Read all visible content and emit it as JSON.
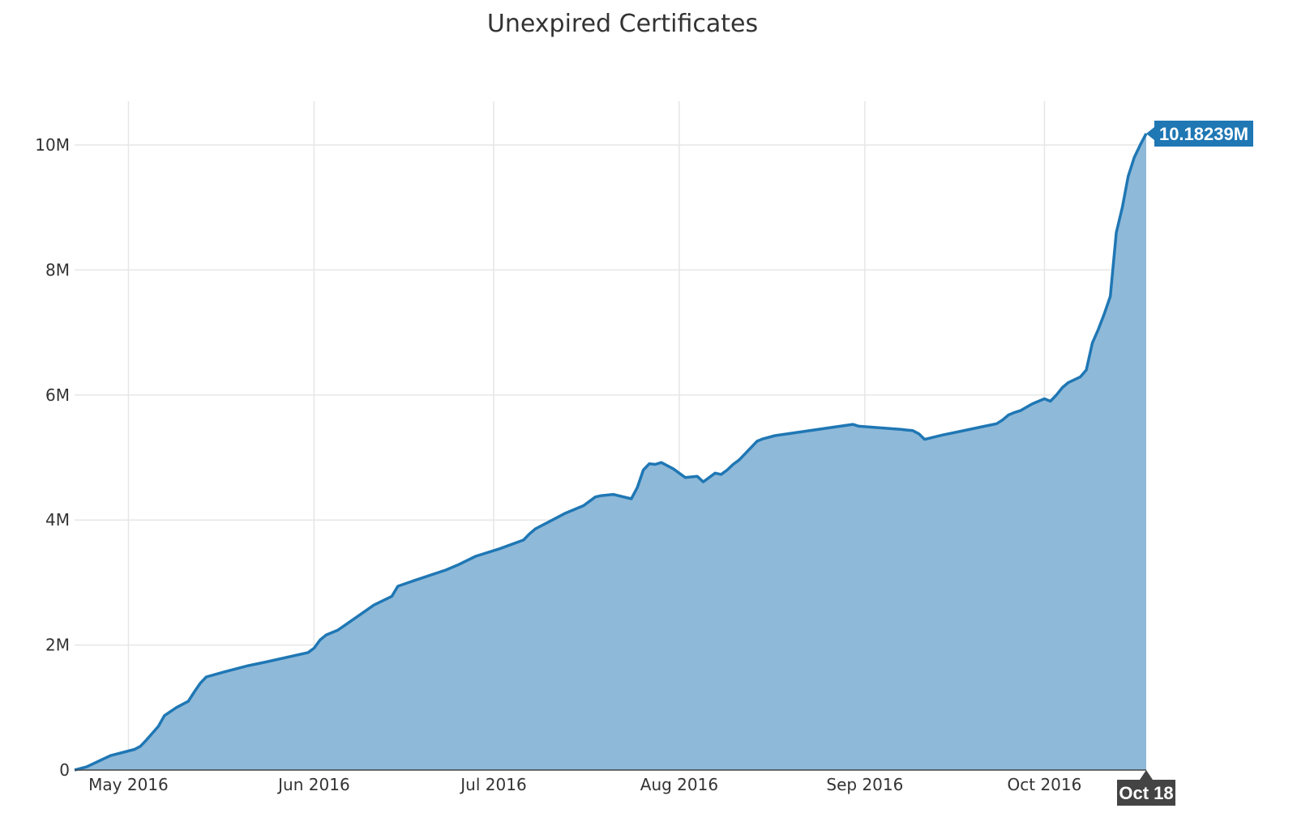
{
  "chart_data": {
    "type": "area",
    "title": "Unexpired Certificates",
    "xlabel": "",
    "ylabel": "",
    "x_ticks": [
      "May 2016",
      "Jun 2016",
      "Jul 2016",
      "Aug 2016",
      "Sep 2016",
      "Oct 2016"
    ],
    "y_ticks": [
      "0",
      "2M",
      "4M",
      "6M",
      "8M",
      "10M"
    ],
    "ylim": [
      0,
      10700000
    ],
    "xlim": [
      "2016-04-22",
      "2016-10-18"
    ],
    "grid": true,
    "colors": {
      "line": "#1f77b4",
      "fill": "#8fb9d9",
      "grid": "#e6e6e6",
      "axis": "#444444",
      "label_bg": "#1f77b4",
      "date_bg": "#444444"
    },
    "hover": {
      "value_label": "10.18239M",
      "date_label": "Oct 18"
    },
    "series": [
      {
        "x": [
          "2016-04-22",
          "2016-04-24",
          "2016-04-28",
          "2016-05-02",
          "2016-05-03",
          "2016-05-04",
          "2016-05-06",
          "2016-05-07",
          "2016-05-09",
          "2016-05-11",
          "2016-05-12",
          "2016-05-13",
          "2016-05-14",
          "2016-05-17",
          "2016-05-21",
          "2016-05-24",
          "2016-05-31",
          "2016-06-01",
          "2016-06-02",
          "2016-06-03",
          "2016-06-05",
          "2016-06-11",
          "2016-06-14",
          "2016-06-15",
          "2016-06-18",
          "2016-06-23",
          "2016-06-25",
          "2016-06-28",
          "2016-07-02",
          "2016-07-06",
          "2016-07-07",
          "2016-07-08",
          "2016-07-10",
          "2016-07-13",
          "2016-07-16",
          "2016-07-18",
          "2016-07-19",
          "2016-07-21",
          "2016-07-24",
          "2016-07-25",
          "2016-07-26",
          "2016-07-27",
          "2016-07-28",
          "2016-07-29",
          "2016-07-31",
          "2016-08-02",
          "2016-08-04",
          "2016-08-05",
          "2016-08-07",
          "2016-08-08",
          "2016-08-09",
          "2016-08-10",
          "2016-08-11",
          "2016-08-14",
          "2016-08-15",
          "2016-08-17",
          "2016-08-30",
          "2016-08-31",
          "2016-09-07",
          "2016-09-08",
          "2016-09-09",
          "2016-09-10",
          "2016-09-11",
          "2016-09-14",
          "2016-09-17",
          "2016-09-21",
          "2016-09-22",
          "2016-09-23",
          "2016-09-24",
          "2016-09-25",
          "2016-09-26",
          "2016-09-27",
          "2016-09-29",
          "2016-10-01",
          "2016-10-02",
          "2016-10-03",
          "2016-10-04",
          "2016-10-05",
          "2016-10-07",
          "2016-10-08",
          "2016-10-09",
          "2016-10-10",
          "2016-10-11",
          "2016-10-12",
          "2016-10-13",
          "2016-10-14",
          "2016-10-15",
          "2016-10-16",
          "2016-10-17",
          "2016-10-18"
        ],
        "y": [
          0,
          50000,
          230000,
          330000,
          380000,
          480000,
          700000,
          870000,
          1000000,
          1100000,
          1250000,
          1390000,
          1490000,
          1570000,
          1670000,
          1730000,
          1880000,
          1950000,
          2080000,
          2160000,
          2240000,
          2640000,
          2780000,
          2940000,
          3040000,
          3200000,
          3280000,
          3420000,
          3540000,
          3680000,
          3780000,
          3860000,
          3960000,
          4110000,
          4230000,
          4370000,
          4390000,
          4410000,
          4340000,
          4520000,
          4800000,
          4900000,
          4890000,
          4920000,
          4820000,
          4680000,
          4700000,
          4610000,
          4750000,
          4730000,
          4800000,
          4890000,
          4960000,
          5260000,
          5300000,
          5350000,
          5530000,
          5500000,
          5450000,
          5440000,
          5430000,
          5380000,
          5290000,
          5360000,
          5420000,
          5500000,
          5520000,
          5540000,
          5600000,
          5680000,
          5720000,
          5750000,
          5860000,
          5940000,
          5900000,
          6000000,
          6120000,
          6200000,
          6290000,
          6400000,
          6830000,
          7050000,
          7300000,
          7580000,
          8600000,
          9000000,
          9500000,
          9800000,
          10000000,
          10182390
        ]
      }
    ]
  }
}
